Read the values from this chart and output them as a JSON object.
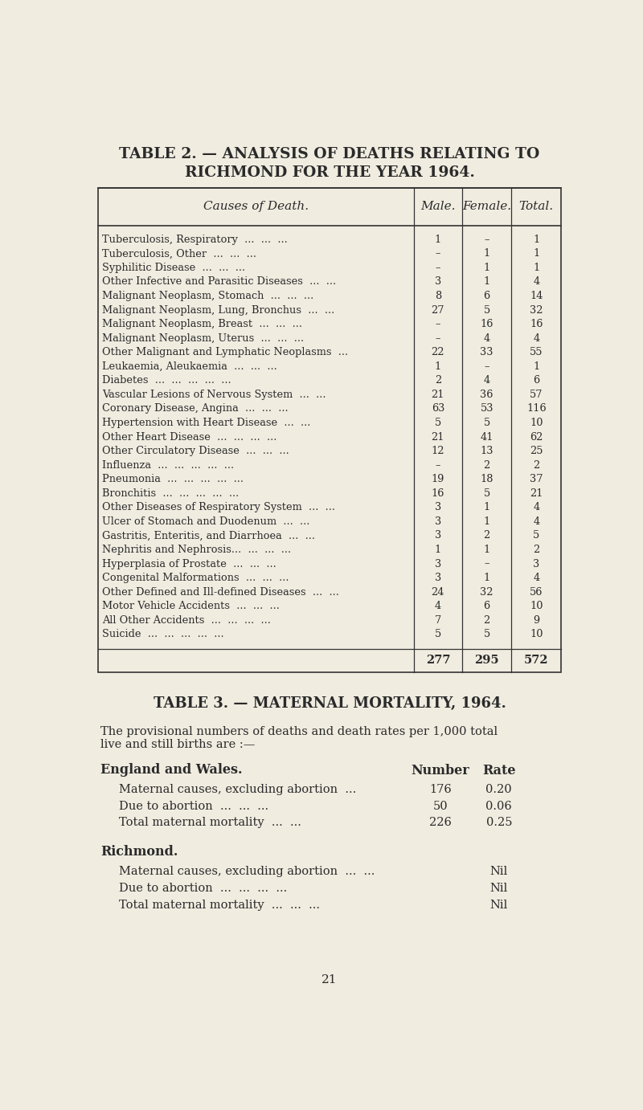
{
  "title1": "TABLE 2. — ANALYSIS OF DEATHS RELATING TO",
  "title2": "RICHMOND FOR THE YEAR 1964.",
  "table2_header": [
    "Causes of Death.",
    "Male.",
    "Female.",
    "Total."
  ],
  "table2_rows": [
    [
      "Tuberculosis, Respiratory  ...  ...  ...",
      "1",
      "–",
      "1"
    ],
    [
      "Tuberculosis, Other  ...  ...  ...",
      "–",
      "1",
      "1"
    ],
    [
      "Syphilitic Disease  ...  ...  ...",
      "–",
      "1",
      "1"
    ],
    [
      "Other Infective and Parasitic Diseases  ...  ...",
      "3",
      "1",
      "4"
    ],
    [
      "Malignant Neoplasm, Stomach  ...  ...  ...",
      "8",
      "6",
      "14"
    ],
    [
      "Malignant Neoplasm, Lung, Bronchus  ...  ...",
      "27",
      "5",
      "32"
    ],
    [
      "Malignant Neoplasm, Breast  ...  ...  ...",
      "–",
      "16",
      "16"
    ],
    [
      "Malignant Neoplasm, Uterus  ...  ...  ...",
      "–",
      "4",
      "4"
    ],
    [
      "Other Malignant and Lymphatic Neoplasms  ...",
      "22",
      "33",
      "55"
    ],
    [
      "Leukaemia, Aleukaemia  ...  ...  ...",
      "1",
      "–",
      "1"
    ],
    [
      "Diabetes  ...  ...  ...  ...  ...",
      "2",
      "4",
      "6"
    ],
    [
      "Vascular Lesions of Nervous System  ...  ...",
      "21",
      "36",
      "57"
    ],
    [
      "Coronary Disease, Angina  ...  ...  ...",
      "63",
      "53",
      "116"
    ],
    [
      "Hypertension with Heart Disease  ...  ...",
      "5",
      "5",
      "10"
    ],
    [
      "Other Heart Disease  ...  ...  ...  ...",
      "21",
      "41",
      "62"
    ],
    [
      "Other Circulatory Disease  ...  ...  ...",
      "12",
      "13",
      "25"
    ],
    [
      "Influenza  ...  ...  ...  ...  ...",
      "–",
      "2",
      "2"
    ],
    [
      "Pneumonia  ...  ...  ...  ...  ...",
      "19",
      "18",
      "37"
    ],
    [
      "Bronchitis  ...  ...  ...  ...  ...",
      "16",
      "5",
      "21"
    ],
    [
      "Other Diseases of Respiratory System  ...  ...",
      "3",
      "1",
      "4"
    ],
    [
      "Ulcer of Stomach and Duodenum  ...  ...",
      "3",
      "1",
      "4"
    ],
    [
      "Gastritis, Enteritis, and Diarrhoea  ...  ...",
      "3",
      "2",
      "5"
    ],
    [
      "Nephritis and Nephrosis...  ...  ...  ...",
      "1",
      "1",
      "2"
    ],
    [
      "Hyperplasia of Prostate  ...  ...  ...",
      "3",
      "–",
      "3"
    ],
    [
      "Congenital Malformations  ...  ...  ...",
      "3",
      "1",
      "4"
    ],
    [
      "Other Defined and Ill-defined Diseases  ...  ...",
      "24",
      "32",
      "56"
    ],
    [
      "Motor Vehicle Accidents  ...  ...  ...",
      "4",
      "6",
      "10"
    ],
    [
      "All Other Accidents  ...  ...  ...  ...",
      "7",
      "2",
      "9"
    ],
    [
      "Suicide  ...  ...  ...  ...  ...",
      "5",
      "5",
      "10"
    ]
  ],
  "table2_totals": [
    "",
    "277",
    "295",
    "572"
  ],
  "table3_title": "TABLE 3. — MATERNAL MORTALITY, 1964.",
  "table3_intro_line1": "The provisional numbers of deaths and death rates per 1,000 total",
  "table3_intro_line2": "live and still births are :—",
  "england_header": "England and Wales.",
  "england_col_headers": [
    "Number",
    "Rate"
  ],
  "england_rows": [
    [
      "Maternal causes, excluding abortion  ...",
      "176",
      "0.20"
    ],
    [
      "Due to abortion  ...  ...  ...",
      "50",
      "0.06"
    ],
    [
      "Total maternal mortality  ...  ...",
      "226",
      "0.25"
    ]
  ],
  "richmond_header": "Richmond.",
  "richmond_rows": [
    [
      "Maternal causes, excluding abortion  ...  ...",
      "...",
      "Nil"
    ],
    [
      "Due to abortion  ...  ...  ...  ...",
      "...",
      "Nil"
    ],
    [
      "Total maternal mortality  ...  ...  ...",
      "...",
      "Nil"
    ]
  ],
  "page_number": "21",
  "bg_color": "#f0ece0",
  "text_color": "#2a2a2a",
  "border_color": "#333333"
}
